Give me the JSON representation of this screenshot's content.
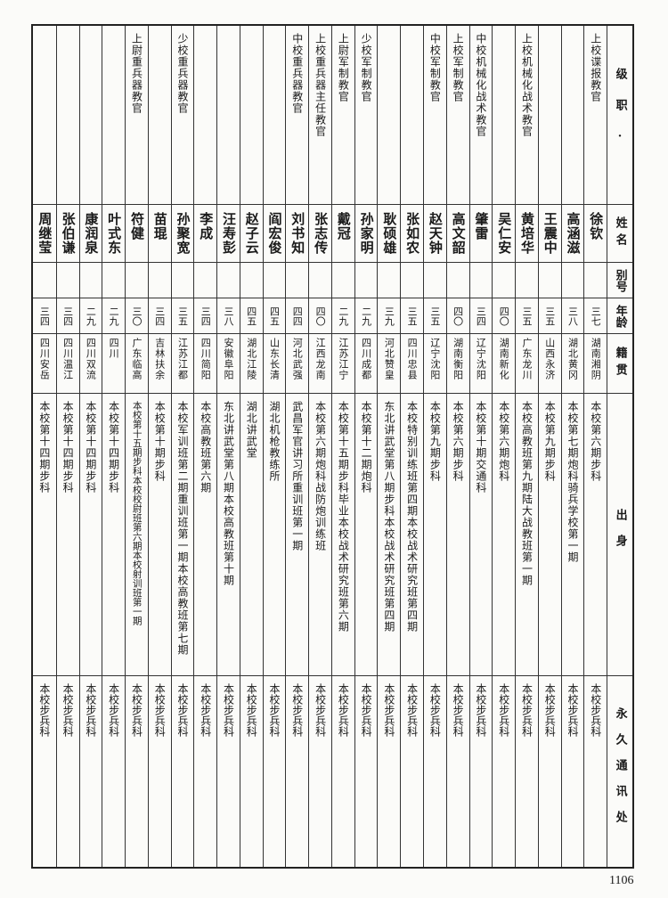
{
  "headers": {
    "position": "级职·",
    "name": "姓名",
    "alias": "别号",
    "age": "年龄",
    "origin": "籍贯",
    "background": "出身",
    "address": "永久通讯处"
  },
  "rows": [
    {
      "position": "上校谍报教官",
      "name": "徐钦",
      "alias": "",
      "age": "三七",
      "origin": "湖南湘阴",
      "background": "本校第六期步科",
      "address": "本校步兵科"
    },
    {
      "position": "",
      "name": "高涵滋",
      "alias": "",
      "age": "三八",
      "origin": "湖北黄冈",
      "background": "本校第七期炮科骑兵学校第一期",
      "address": "本校步兵科"
    },
    {
      "position": "",
      "name": "王震中",
      "alias": "",
      "age": "三五",
      "origin": "山西永济",
      "background": "本校第九期步科",
      "address": "本校步兵科"
    },
    {
      "position": "上校机械化战术教官",
      "name": "黄培华",
      "alias": "",
      "age": "三五",
      "origin": "广东龙川",
      "background": "本校高教班第九期陆大战教班第一期",
      "address": "本校步兵科"
    },
    {
      "position": "",
      "name": "吴仁安",
      "alias": "",
      "age": "四〇",
      "origin": "湖南新化",
      "background": "本校第六期炮科",
      "address": "本校步兵科"
    },
    {
      "position": "中校机械化战术教官",
      "name": "肇雷",
      "alias": "",
      "age": "三四",
      "origin": "辽宁沈阳",
      "background": "本校第十期交通科",
      "address": "本校步兵科"
    },
    {
      "position": "上校军制教官",
      "name": "高文韶",
      "alias": "",
      "age": "四〇",
      "origin": "湖南衡阳",
      "background": "本校第六期步科",
      "address": "本校步兵科"
    },
    {
      "position": "中校军制教官",
      "name": "赵天钟",
      "alias": "",
      "age": "三五",
      "origin": "辽宁沈阳",
      "background": "本校第九期步科",
      "address": "本校步兵科"
    },
    {
      "position": "",
      "name": "张如农",
      "alias": "",
      "age": "三五",
      "origin": "四川忠县",
      "background": "本校特别训练班第四期本校战术研究班第四期",
      "address": "本校步兵科"
    },
    {
      "position": "",
      "name": "耿硕雄",
      "alias": "",
      "age": "三九",
      "origin": "河北赞皇",
      "background": "东北讲武堂第八期步科本校战术研究班第四期",
      "address": "本校步兵科"
    },
    {
      "position": "少校军制教官",
      "name": "孙家明",
      "alias": "",
      "age": "二九",
      "origin": "四川成都",
      "background": "本校第十二期炮科",
      "address": "本校步兵科"
    },
    {
      "position": "上尉军制教官",
      "name": "戴冠",
      "alias": "",
      "age": "二九",
      "origin": "江苏江宁",
      "background": "本校第十五期步科毕业本校战术研究班第六期",
      "address": "本校步兵科"
    },
    {
      "position": "上校重兵器主任教官",
      "name": "张志传",
      "alias": "",
      "age": "四〇",
      "origin": "江西龙南",
      "background": "本校第六期炮科战防炮训练班",
      "address": "本校步兵科"
    },
    {
      "position": "中校重兵器教官",
      "name": "刘书知",
      "alias": "",
      "age": "四四",
      "origin": "河北武强",
      "background": "武昌军官讲习所重训班第一期",
      "address": "本校步兵科"
    },
    {
      "position": "",
      "name": "阎宏俊",
      "alias": "",
      "age": "四五",
      "origin": "山东长清",
      "background": "湖北机枪教练所",
      "address": "本校步兵科"
    },
    {
      "position": "",
      "name": "赵子云",
      "alias": "",
      "age": "四五",
      "origin": "湖北江陵",
      "background": "湖北讲武堂",
      "address": "本校步兵科"
    },
    {
      "position": "",
      "name": "汪寿彭",
      "alias": "",
      "age": "三八",
      "origin": "安徽阜阳",
      "background": "东北讲武堂第八期本校高教班第十期",
      "address": "本校步兵科"
    },
    {
      "position": "",
      "name": "李成",
      "alias": "",
      "age": "三四",
      "origin": "四川简阳",
      "background": "本校高教班第六期",
      "address": "本校步兵科"
    },
    {
      "position": "少校重兵器教官",
      "name": "孙聚宽",
      "alias": "",
      "age": "三五",
      "origin": "江苏江都",
      "background": "本校军训班第二期重训班第一期本校高教班第七期",
      "address": "本校步兵科"
    },
    {
      "position": "",
      "name": "苗琨",
      "alias": "",
      "age": "三四",
      "origin": "吉林扶余",
      "background": "本校第十期步科",
      "address": "本校步兵科"
    },
    {
      "position": "上尉重兵器教官",
      "name": "符健",
      "alias": "",
      "age": "三〇",
      "origin": "广东临高",
      "background": "本校第十五期步科本校校尉班第六期本校射训班第一期",
      "address": "本校步兵科"
    },
    {
      "position": "",
      "name": "叶式东",
      "alias": "",
      "age": "二九",
      "origin": "四川",
      "background": "本校第十四期步科",
      "address": "本校步兵科"
    },
    {
      "position": "",
      "name": "康润泉",
      "alias": "",
      "age": "二九",
      "origin": "四川双流",
      "background": "本校第十四期步科",
      "address": "本校步兵科"
    },
    {
      "position": "",
      "name": "张伯谦",
      "alias": "",
      "age": "三四",
      "origin": "四川温江",
      "background": "本校第十四期步科",
      "address": "本校步兵科"
    },
    {
      "position": "",
      "name": "周继莹",
      "alias": "",
      "age": "三四",
      "origin": "四川安岳",
      "background": "本校第十四期步科",
      "address": "本校步兵科"
    }
  ],
  "page_number": "1106"
}
